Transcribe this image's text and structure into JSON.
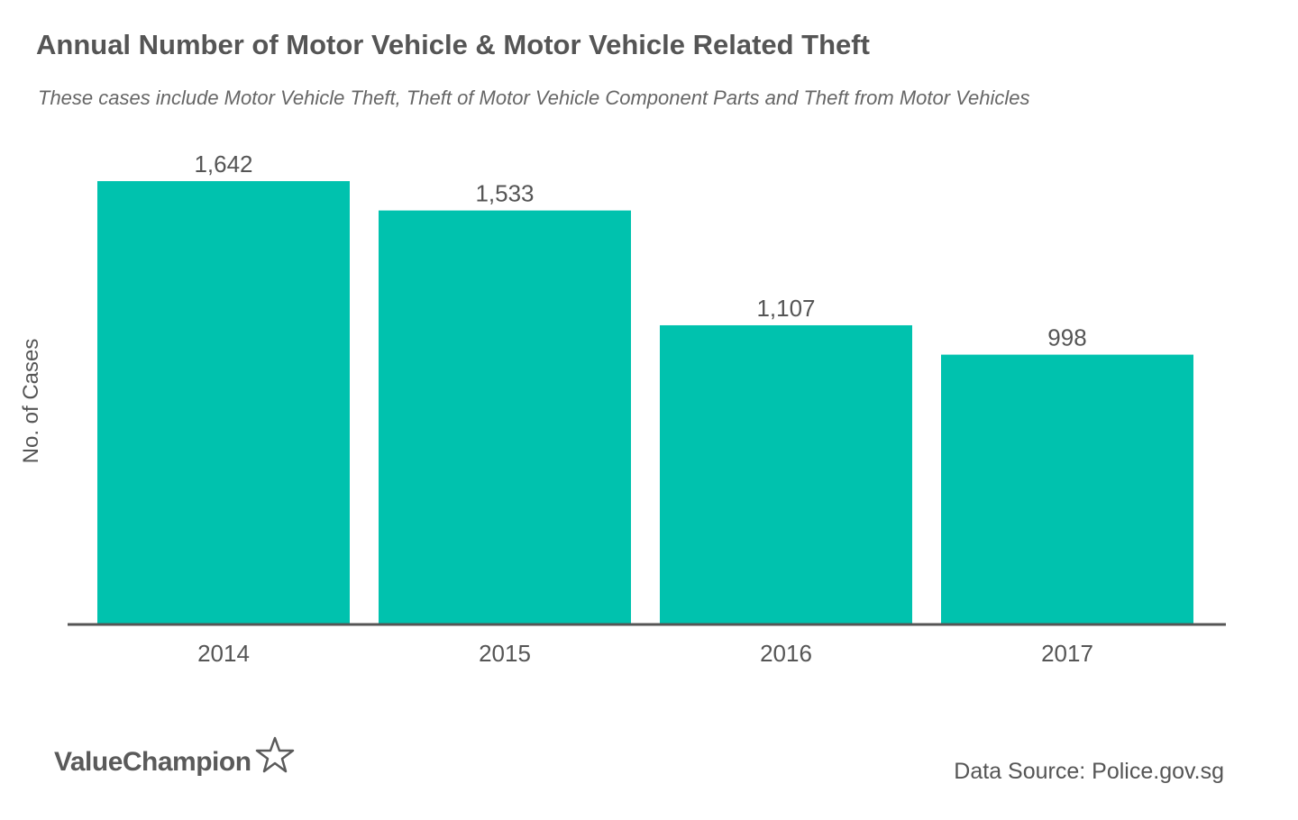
{
  "chart_data": {
    "type": "bar",
    "title": "Annual Number of Motor Vehicle & Motor Vehicle Related Theft",
    "subtitle": "These cases include Motor Vehicle Theft, Theft of Motor Vehicle Component Parts and Theft from Motor Vehicles",
    "xlabel": "",
    "ylabel": "No. of Cases",
    "categories": [
      "2014",
      "2015",
      "2016",
      "2017"
    ],
    "values": [
      1642,
      1533,
      1107,
      998
    ],
    "value_labels": [
      "1,642",
      "1,533",
      "1,107",
      "998"
    ],
    "ylim": [
      0,
      1642
    ],
    "grid": false,
    "legend": "none",
    "colors": {
      "bar": "#00C2AE",
      "axis": "#555555",
      "text": "#555555"
    }
  },
  "branding": {
    "logo_text": "ValueChampion",
    "logo_icon": "star-outline-icon"
  },
  "source": "Data Source: Police.gov.sg"
}
